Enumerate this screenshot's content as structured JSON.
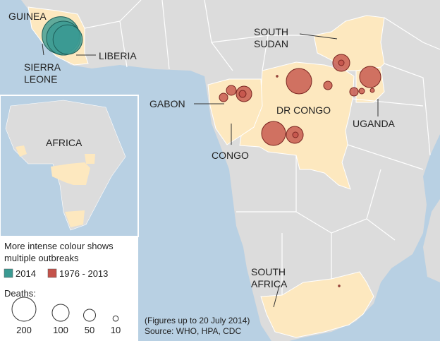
{
  "map_labels": [
    {
      "lines": [
        "GUINEA"
      ]
    },
    {
      "lines": [
        "SIERRA",
        "LEONE"
      ]
    },
    {
      "lines": [
        "LIBERIA"
      ]
    },
    {
      "lines": [
        "SOUTH",
        "SUDAN"
      ]
    },
    {
      "lines": [
        "GABON"
      ]
    },
    {
      "lines": [
        "DR CONGO"
      ]
    },
    {
      "lines": [
        "UGANDA"
      ]
    },
    {
      "lines": [
        "CONGO"
      ]
    },
    {
      "lines": [
        "SOUTH",
        "AFRICA"
      ]
    }
  ],
  "inset_label": "AFRICA",
  "legend": {
    "title_lines": [
      "More intense colour shows",
      "multiple outbreaks"
    ],
    "periods": [
      {
        "label": "2014",
        "color": "#3a9a92",
        "outbreak_deaths": [
          480,
          400,
          300
        ]
      },
      {
        "label": "1976 - 2013",
        "color": "#c4524a",
        "outbreak_deaths": [
          224,
          200,
          100,
          11,
          156,
          100,
          11,
          84,
          17,
          34,
          25,
          25,
          25,
          11,
          6,
          1,
          1
        ]
      }
    ],
    "size_title": "Deaths:",
    "sizes": [
      200,
      100,
      50,
      10
    ]
  },
  "notes": [
    "(Figures up to 20 July 2014)",
    "Source: WHO, HPA, CDC"
  ]
}
